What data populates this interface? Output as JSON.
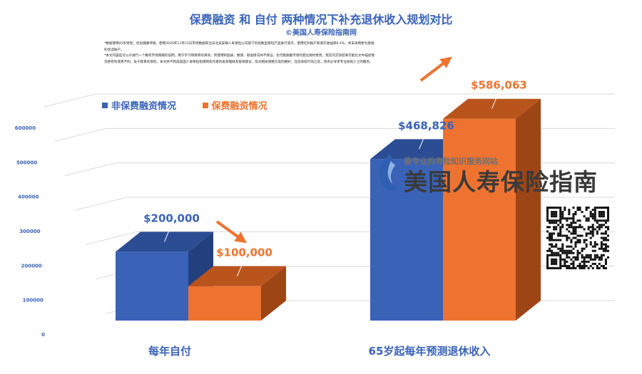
{
  "page": {
    "title": "保费融资 和 自付 两种情况下补充退休收入规划对比",
    "subtitle": "©美国人寿保险指南网",
    "disclaimer": [
      "*数据使用45岁男性，优良健康评级，使用2020年11月11日市场数据和当日北美安联人寿保险公司旗下的指数型保险产品进行演示，使用红利账户和演示收益率6.4%，并未采用更为激进的优选账户。",
      "*本文内容是对公众进行一个概有市场策略的说明，用于学习和教育的目的，所使用的图表、数值、假设情况并不保证，也可能随着市场的变化随时更改，现实的实际结果可能比文中描述情况更有利或更不利，处于教育的目的，本文并不构成美国人寿保险指南网及作者的投资理财及投保建议，及对相关策略方案的拥护，在您采取行动之前，请务必寻求专业执照人士的服务。"
    ],
    "brand": {
      "tagline": "最专业的寿险知识服务网站",
      "name": "美国人寿保险指南",
      "icon": "flame-logo-icon"
    },
    "qr_icon": "qr-code-icon"
  },
  "chart_data": {
    "type": "bar",
    "title": "保费融资 和 自付 两种情况下补充退休收入规划对比",
    "subtitle": "©美国人寿保险指南网",
    "categories": [
      "每年自付",
      "65岁起每年预测退休收入"
    ],
    "series": [
      {
        "name": "非保费融资情况",
        "values": [
          200000,
          468826
        ],
        "labels": [
          "$200,000",
          "$468,826"
        ],
        "color": "#3a63b8"
      },
      {
        "name": "保费融资情况",
        "values": [
          100000,
          586063
        ],
        "labels": [
          "$100,000",
          "$586,063"
        ],
        "color": "#ee7330"
      }
    ],
    "yticks": [
      "0",
      "100000",
      "200000",
      "300000",
      "400000",
      "500000",
      "600000"
    ],
    "ylim": [
      0,
      600000
    ],
    "grid": true,
    "legend": "top-left",
    "three_d": true
  }
}
